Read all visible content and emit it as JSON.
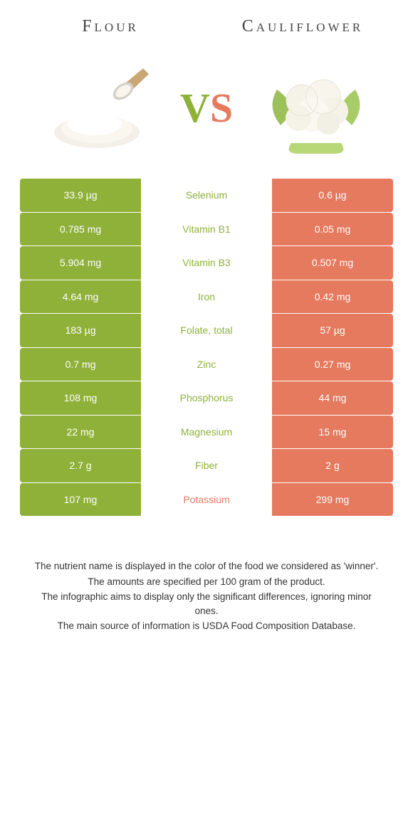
{
  "titles": {
    "left": "Flour",
    "right": "Cauliflower"
  },
  "vs": {
    "v": "V",
    "s": "S"
  },
  "colors": {
    "left": "#8fb13a",
    "right": "#e57a5f",
    "text_left": "#8fb13a",
    "text_right": "#e57a5f"
  },
  "table": {
    "type": "comparison-table",
    "rows": [
      {
        "left": "33.9 µg",
        "nutrient": "Selenium",
        "right": "0.6 µg",
        "winner": "left"
      },
      {
        "left": "0.785 mg",
        "nutrient": "Vitamin B1",
        "right": "0.05 mg",
        "winner": "left"
      },
      {
        "left": "5.904 mg",
        "nutrient": "Vitamin B3",
        "right": "0.507 mg",
        "winner": "left"
      },
      {
        "left": "4.64 mg",
        "nutrient": "Iron",
        "right": "0.42 mg",
        "winner": "left"
      },
      {
        "left": "183 µg",
        "nutrient": "Folate, total",
        "right": "57 µg",
        "winner": "left"
      },
      {
        "left": "0.7 mg",
        "nutrient": "Zinc",
        "right": "0.27 mg",
        "winner": "left"
      },
      {
        "left": "108 mg",
        "nutrient": "Phosphorus",
        "right": "44 mg",
        "winner": "left"
      },
      {
        "left": "22 mg",
        "nutrient": "Magnesium",
        "right": "15 mg",
        "winner": "left"
      },
      {
        "left": "2.7 g",
        "nutrient": "Fiber",
        "right": "2 g",
        "winner": "left"
      },
      {
        "left": "107 mg",
        "nutrient": "Potassium",
        "right": "299 mg",
        "winner": "right"
      }
    ]
  },
  "footnotes": {
    "l1": "The nutrient name is displayed in the color of the food we considered as 'winner'.",
    "l2": "The amounts are specified per 100 gram of the product.",
    "l3": "The infographic aims to display only the significant differences, ignoring minor ones.",
    "l4": "The main source of information is USDA Food Composition Database."
  }
}
